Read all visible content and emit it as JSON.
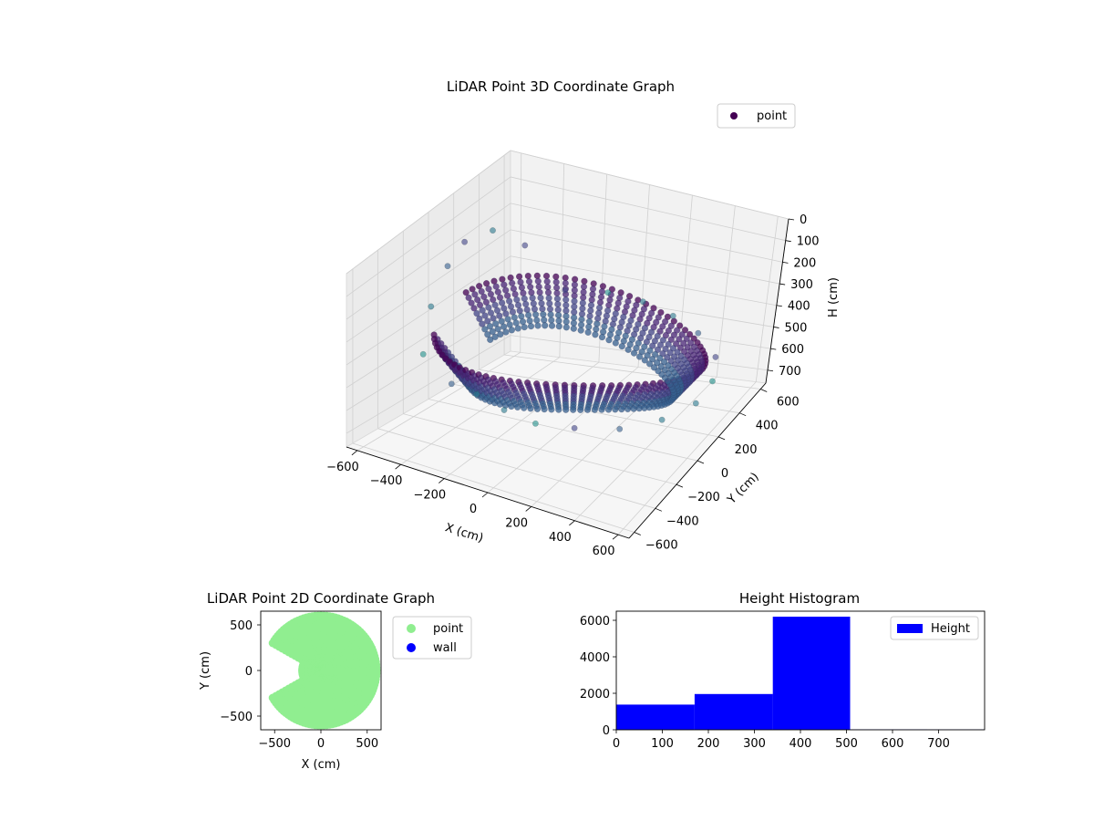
{
  "chart_data": [
    {
      "type": "scatter",
      "title": "LiDAR Point 3D Coordinate Graph",
      "xlabel": "X (cm)",
      "ylabel": "Y (cm)",
      "zlabel": "H (cm)",
      "xlim": [
        -650,
        650
      ],
      "ylim": [
        -650,
        650
      ],
      "zlim": [
        0,
        760
      ],
      "z_inverted": true,
      "x_ticks": [
        "−600",
        "−400",
        "−200",
        "0",
        "200",
        "400",
        "600"
      ],
      "x_tick_values": [
        -600,
        -400,
        -200,
        0,
        200,
        400,
        600
      ],
      "y_ticks": [
        "−600",
        "−400",
        "−200",
        "0",
        "200",
        "400",
        "600"
      ],
      "y_tick_values": [
        -600,
        -400,
        -200,
        0,
        200,
        400,
        600
      ],
      "z_ticks": [
        "0",
        "100",
        "200",
        "300",
        "400",
        "500",
        "600",
        "700"
      ],
      "z_tick_values": [
        0,
        100,
        200,
        300,
        400,
        500,
        600,
        700
      ],
      "legend": [
        {
          "label": "point",
          "color": "#440154"
        }
      ],
      "legend_position": "top-right",
      "colormap": "viridis",
      "grid": true,
      "series": [
        {
          "name": "point",
          "points": [
            {
              "x": -600,
              "y": 200,
              "h": 120
            },
            {
              "x": -620,
              "y": 100,
              "h": 200
            },
            {
              "x": -580,
              "y": -100,
              "h": 300
            },
            {
              "x": -540,
              "y": 320,
              "h": 90
            },
            {
              "x": -500,
              "y": -300,
              "h": 420
            },
            {
              "x": -450,
              "y": 420,
              "h": 160
            },
            {
              "x": -300,
              "y": -420,
              "h": 450
            },
            {
              "x": -150,
              "y": -480,
              "h": 430
            },
            {
              "x": 0,
              "y": -520,
              "h": 440
            },
            {
              "x": 150,
              "y": -530,
              "h": 450
            },
            {
              "x": 300,
              "y": -480,
              "h": 440
            },
            {
              "x": 450,
              "y": -380,
              "h": 430
            },
            {
              "x": 540,
              "y": -200,
              "h": 420
            },
            {
              "x": 580,
              "y": 0,
              "h": 400
            },
            {
              "x": 540,
              "y": 200,
              "h": 380
            },
            {
              "x": 450,
              "y": 380,
              "h": 360
            },
            {
              "x": 300,
              "y": 500,
              "h": 340
            },
            {
              "x": 150,
              "y": 560,
              "h": 330
            },
            {
              "x": 0,
              "y": 580,
              "h": 320
            },
            {
              "x": -150,
              "y": 560,
              "h": 320
            },
            {
              "x": -300,
              "y": 480,
              "h": 330
            }
          ]
        }
      ]
    },
    {
      "type": "scatter",
      "title": "LiDAR Point 2D Coordinate Graph",
      "xlabel": "X (cm)",
      "ylabel": "Y (cm)",
      "xlim": [
        -650,
        650
      ],
      "ylim": [
        -650,
        650
      ],
      "x_ticks": [
        "−500",
        "0",
        "500"
      ],
      "x_tick_values": [
        -500,
        0,
        500
      ],
      "y_ticks": [
        "−500",
        "0",
        "500"
      ],
      "y_tick_values": [
        -500,
        0,
        500
      ],
      "legend": [
        {
          "label": "point",
          "color": "#90ee90"
        },
        {
          "label": "wall",
          "color": "#0000ff"
        }
      ],
      "legend_position": "outside-right",
      "series": [
        {
          "name": "point",
          "color": "#90ee90"
        },
        {
          "name": "wall",
          "color": "#0000ff"
        }
      ]
    },
    {
      "type": "bar",
      "title": "Height Histogram",
      "xlabel": "",
      "ylabel": "",
      "xlim": [
        0,
        800
      ],
      "ylim": [
        0,
        6500
      ],
      "x_ticks": [
        "0",
        "100",
        "200",
        "300",
        "400",
        "500",
        "600",
        "700"
      ],
      "x_tick_values": [
        0,
        100,
        200,
        300,
        400,
        500,
        600,
        700
      ],
      "y_ticks": [
        "0",
        "2000",
        "4000",
        "6000"
      ],
      "y_tick_values": [
        0,
        2000,
        4000,
        6000
      ],
      "bins": [
        {
          "start": 0,
          "end": 170,
          "count": 1380
        },
        {
          "start": 170,
          "end": 340,
          "count": 1960
        },
        {
          "start": 340,
          "end": 508,
          "count": 6200
        },
        {
          "start": 508,
          "end": 676,
          "count": 25
        },
        {
          "start": 676,
          "end": 845,
          "count": 15
        }
      ],
      "legend": [
        {
          "label": "Height",
          "color": "#0000ff"
        }
      ],
      "legend_position": "top-right",
      "color": "#0000ff"
    }
  ]
}
